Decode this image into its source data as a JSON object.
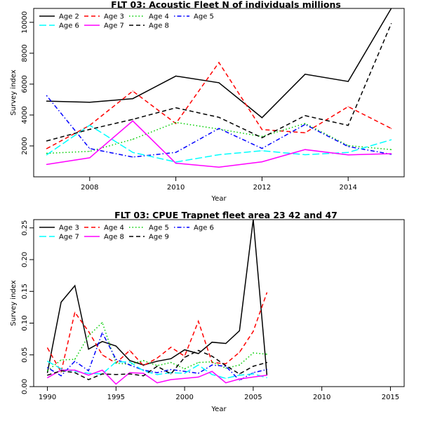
{
  "chart_data": [
    {
      "type": "line",
      "title": "FLT 03: Acoustic Fleet N of individuals millions",
      "xlabel": "Year",
      "ylabel": "Survey index",
      "xlim": [
        2006.7,
        2015.3
      ],
      "ylim": [
        0,
        10900
      ],
      "xticks": [
        2008,
        2010,
        2012,
        2014
      ],
      "xtick_labels": [
        "2008",
        "2010",
        "2012",
        "2014"
      ],
      "yticks": [
        2000,
        4000,
        6000,
        8000,
        10000
      ],
      "ytick_labels": [
        "2000",
        "4000",
        "6000",
        "8000",
        "10000"
      ],
      "grid": false,
      "legend": {
        "position": "top-left",
        "columns": 4
      },
      "x": [
        2007,
        2008,
        2009,
        2010,
        2011,
        2012,
        2013,
        2014,
        2015
      ],
      "series": [
        {
          "name": "Age 2",
          "color": "#000000",
          "dash": "solid",
          "values": [
            4900,
            4830,
            5060,
            6520,
            6090,
            3830,
            6640,
            6170,
            10900
          ]
        },
        {
          "name": "Age 3",
          "color": "#ff0000",
          "dash": "dashed",
          "values": [
            1820,
            3330,
            5550,
            3450,
            7400,
            3060,
            2850,
            4540,
            3130
          ]
        },
        {
          "name": "Age 4",
          "color": "#00cd00",
          "dash": "dotted",
          "values": [
            1520,
            1650,
            2430,
            3520,
            3090,
            2610,
            3450,
            2020,
            1760
          ]
        },
        {
          "name": "Age 5",
          "color": "#0000ff",
          "dash": "dotdash",
          "values": [
            5260,
            1830,
            1280,
            1580,
            3130,
            1840,
            3390,
            1960,
            1460
          ]
        },
        {
          "name": "Age 6",
          "color": "#00ffff",
          "dash": "longdash",
          "values": [
            1420,
            3340,
            1580,
            960,
            1430,
            1690,
            1430,
            1580,
            2400
          ]
        },
        {
          "name": "Age 7",
          "color": "#ff00ff",
          "dash": "solid",
          "values": [
            800,
            1230,
            3620,
            880,
            620,
            970,
            1760,
            1420,
            1500
          ]
        },
        {
          "name": "Age 8",
          "color": "#000000",
          "dash": "dashed",
          "values": [
            2320,
            3070,
            3720,
            4470,
            3850,
            2530,
            3960,
            3330,
            9920
          ]
        }
      ]
    },
    {
      "type": "line",
      "title": "FLT 03: CPUE Trapnet fleet area 23 42 and 47",
      "xlabel": "Year",
      "ylabel": "Survey index",
      "xlim": [
        1989,
        2016
      ],
      "ylim": [
        0,
        0.263
      ],
      "xticks": [
        1990,
        1995,
        2000,
        2005,
        2010,
        2015
      ],
      "xtick_labels": [
        "1990",
        "1995",
        "2000",
        "2005",
        "2010",
        "2015"
      ],
      "yticks": [
        0,
        0.05,
        0.1,
        0.15,
        0.2,
        0.25
      ],
      "ytick_labels": [
        "0.00",
        "0.05",
        "0.10",
        "0.15",
        "0.20",
        "0.25"
      ],
      "grid": false,
      "legend": {
        "position": "top-left",
        "columns": 4
      },
      "x": [
        1990,
        1991,
        1992,
        1993,
        1994,
        1995,
        1996,
        1997,
        1998,
        1999,
        2000,
        2001,
        2002,
        2003,
        2004,
        2005,
        2006
      ],
      "series": [
        {
          "name": "Age 3",
          "color": "#000000",
          "dash": "solid",
          "values": [
            0.022,
            0.133,
            0.159,
            0.059,
            0.071,
            0.064,
            0.041,
            0.034,
            0.04,
            0.044,
            0.058,
            0.052,
            0.07,
            0.068,
            0.088,
            0.263,
            0.018
          ]
        },
        {
          "name": "Age 4",
          "color": "#ff0000",
          "dash": "dashed",
          "values": [
            0.061,
            0.023,
            0.117,
            0.087,
            0.05,
            0.037,
            0.057,
            0.033,
            0.045,
            0.062,
            0.048,
            0.103,
            0.038,
            0.036,
            0.054,
            0.087,
            0.148
          ]
        },
        {
          "name": "Age 5",
          "color": "#00cd00",
          "dash": "dotted",
          "values": [
            0.025,
            0.042,
            0.043,
            0.08,
            0.101,
            0.037,
            0.035,
            0.041,
            0.033,
            0.038,
            0.028,
            0.038,
            0.039,
            0.029,
            0.034,
            0.053,
            0.051
          ]
        },
        {
          "name": "Age 6",
          "color": "#0000ff",
          "dash": "dotdash",
          "values": [
            0.03,
            0.017,
            0.04,
            0.025,
            0.085,
            0.043,
            0.034,
            0.026,
            0.022,
            0.027,
            0.024,
            0.021,
            0.034,
            0.032,
            0.01,
            0.022,
            0.027
          ]
        },
        {
          "name": "Age 7",
          "color": "#00ffff",
          "dash": "longdash",
          "values": [
            0.04,
            0.028,
            0.024,
            0.021,
            0.02,
            0.039,
            0.039,
            0.025,
            0.019,
            0.022,
            0.021,
            0.034,
            0.019,
            0.013,
            0.018,
            0.02,
            0.014
          ]
        },
        {
          "name": "Age 8",
          "color": "#ff00ff",
          "dash": "solid",
          "values": [
            0.014,
            0.026,
            0.026,
            0.018,
            0.026,
            0.004,
            0.022,
            0.021,
            0.006,
            0.011,
            0.013,
            0.015,
            0.024,
            0.006,
            0.012,
            0.015,
            0.018
          ]
        },
        {
          "name": "Age 9",
          "color": "#000000",
          "dash": "dashed",
          "values": [
            0.018,
            0.025,
            0.022,
            0.011,
            0.02,
            0.019,
            0.02,
            0.017,
            0.032,
            0.02,
            0.046,
            0.057,
            0.048,
            0.033,
            0.02,
            0.032,
            0.038
          ]
        }
      ]
    }
  ]
}
